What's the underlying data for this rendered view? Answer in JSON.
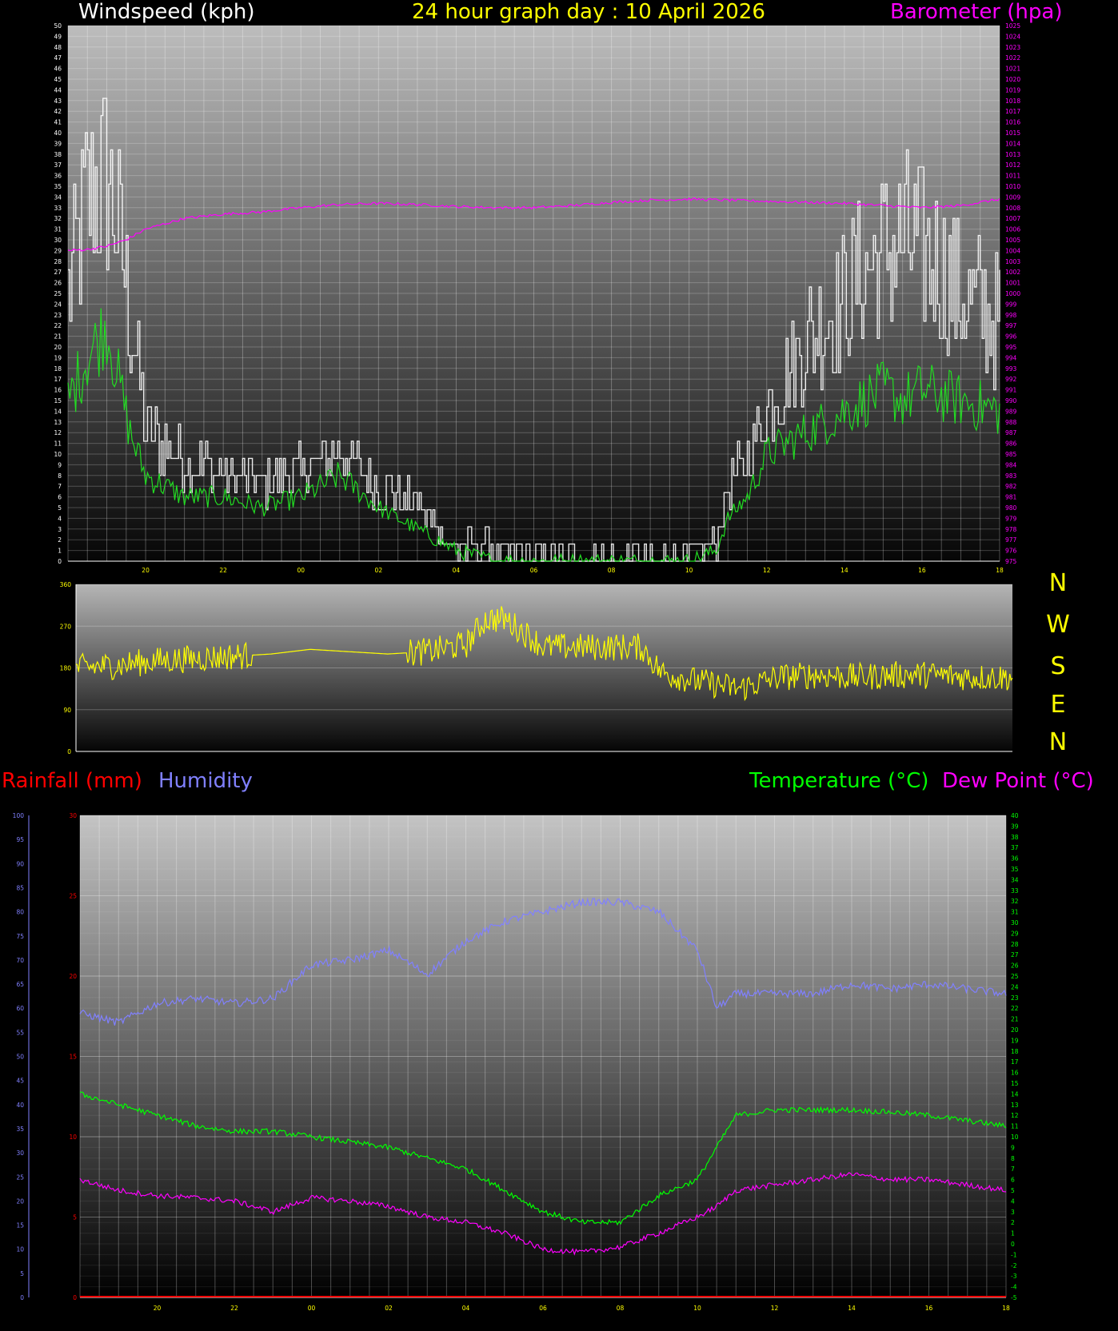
{
  "titles": {
    "windspeed": "Windspeed (kph)",
    "main": "24 hour graph day : 10 April 2026",
    "barometer": "Barometer (hpa)",
    "rainfall": "Rainfall (mm)",
    "humidity": "Humidity",
    "temperature": "Temperature (°C)",
    "dewpoint": "Dew Point (°C)"
  },
  "compass": [
    "N",
    "W",
    "S",
    "E",
    "N"
  ],
  "colors": {
    "windspeed": "#ffffff",
    "wind_avg": "#22dd22",
    "barometer": "#ff00ff",
    "direction": "#ffff00",
    "rainfall": "#ff0000",
    "humidity": "#8080ff",
    "temperature": "#00ff00",
    "dewpoint": "#ff00ff",
    "title": "#ffff00"
  },
  "chart_data": [
    {
      "type": "line",
      "title": "24 hour graph day : 10 April 2026",
      "ylabel": "Windspeed (kph)",
      "y2label": "Barometer (hpa)",
      "ylim": [
        0,
        50
      ],
      "y2lim": [
        975,
        1025
      ],
      "x_hours": [
        18,
        42
      ],
      "xticks": [
        "20",
        "22",
        "00",
        "02",
        "04",
        "06",
        "08",
        "10",
        "12",
        "14",
        "16",
        "18",
        "20",
        "22",
        "00"
      ],
      "grid": true,
      "series": [
        {
          "name": "Windspeed (kph)",
          "axis": "left",
          "style": "gust",
          "x": [
            18.0,
            18.5,
            19.0,
            19.3,
            19.6,
            20.0,
            21.0,
            22.0,
            23.0,
            0.0,
            1.0,
            2.0,
            3.0,
            4.0,
            5.0,
            6.0,
            7.0,
            8.0,
            9.0,
            10.0,
            10.7,
            11.0,
            11.5,
            12.0,
            13.0,
            14.0,
            15.0,
            15.5,
            16.0,
            17.0,
            18.0,
            18.8,
            19.3,
            19.7,
            20.0,
            21.0,
            22.0,
            23.0,
            0.0
          ],
          "y": [
            24,
            33,
            35,
            30,
            22,
            12,
            9,
            8,
            7,
            8,
            10,
            7,
            5,
            1,
            1,
            0,
            0,
            0,
            0,
            0,
            2,
            7,
            9,
            14,
            20,
            24,
            28,
            29,
            28,
            24,
            22,
            18,
            7,
            5,
            6,
            7,
            6,
            6,
            2
          ]
        },
        {
          "name": "Average windspeed",
          "axis": "left",
          "style": "avg",
          "x": [
            18.0,
            18.5,
            19.0,
            19.3,
            19.6,
            20.0,
            21.0,
            22.0,
            23.0,
            0.0,
            1.0,
            2.0,
            3.0,
            4.0,
            5.0,
            6.0,
            7.0,
            8.0,
            9.0,
            10.0,
            10.7,
            11.0,
            11.5,
            12.0,
            13.0,
            14.0,
            15.0,
            15.5,
            16.0,
            17.0,
            18.0,
            18.8,
            19.3,
            19.7,
            20.0,
            21.0,
            22.0,
            23.0,
            0.0
          ],
          "y": [
            15,
            19,
            22,
            17,
            12,
            8,
            6,
            6,
            5,
            6,
            8,
            5,
            3,
            1,
            0,
            0,
            0,
            0,
            0,
            0,
            1,
            4,
            6,
            10,
            12,
            14,
            16,
            15,
            16,
            15,
            14,
            12,
            5,
            3,
            4,
            5,
            4,
            4,
            1
          ]
        },
        {
          "name": "Barometer (hpa)",
          "axis": "right",
          "style": "baro",
          "x": [
            18.0,
            18.5,
            19.0,
            19.5,
            20.0,
            21.0,
            22.0,
            23.0,
            0.0,
            1.0,
            2.0,
            3.0,
            4.0,
            5.0,
            6.0,
            7.0,
            8.0,
            9.0,
            10.0,
            11.0,
            12.0,
            13.0,
            14.0,
            15.0,
            16.0,
            17.0,
            18.0,
            18.8,
            19.3,
            20.0,
            21.0,
            22.0,
            23.0,
            0.0
          ],
          "y": [
            1004,
            1004.1,
            1004.4,
            1005,
            1006,
            1007,
            1007.4,
            1007.6,
            1008,
            1008.3,
            1008.4,
            1008.3,
            1008.1,
            1008,
            1008,
            1008.2,
            1008.5,
            1008.7,
            1008.8,
            1008.7,
            1008.6,
            1008.5,
            1008.4,
            1008.2,
            1008,
            1008.2,
            1008.8,
            1009.4,
            1009.6,
            1010,
            1010.5,
            1011,
            1011.3,
            1011
          ]
        }
      ]
    },
    {
      "type": "line",
      "title": "",
      "ylabel": "",
      "ylim": [
        0,
        360
      ],
      "yticks": [
        0,
        90,
        180,
        270,
        360
      ],
      "x_hours": [
        18,
        42
      ],
      "grid": true,
      "series": [
        {
          "name": "Wind direction",
          "axis": "left",
          "style": "dir",
          "x": [
            18.0,
            19.0,
            20.0,
            21.0,
            22.0,
            23.0,
            0.0,
            1.0,
            2.0,
            3.0,
            4.0,
            4.5,
            5.0,
            6.0,
            7.0,
            8.0,
            8.5,
            9.0,
            10.0,
            11.0,
            12.0,
            13.0,
            14.0,
            15.0,
            16.0,
            17.0,
            18.0,
            19.0,
            19.7,
            20.0,
            21.0,
            22.0,
            23.0,
            0.0
          ],
          "y": [
            180,
            185,
            195,
            200,
            205,
            210,
            220,
            215,
            210,
            215,
            230,
            285,
            285,
            225,
            225,
            225,
            225,
            170,
            150,
            135,
            160,
            165,
            160,
            165,
            165,
            160,
            160,
            165,
            170,
            230,
            240,
            240,
            225,
            225
          ]
        }
      ]
    },
    {
      "type": "line",
      "title": "",
      "ylabel": "Rainfall (mm)",
      "y2label": "Temperature (°C)",
      "ylim": [
        0,
        30
      ],
      "y2lim": [
        -5,
        40
      ],
      "humidity_lim": [
        0,
        100
      ],
      "x_hours": [
        18,
        42
      ],
      "grid": true,
      "series": [
        {
          "name": "Humidity",
          "axis": "humidity",
          "style": "hum",
          "x": [
            18.0,
            19.0,
            20.0,
            21.0,
            22.0,
            23.0,
            0.0,
            1.0,
            2.0,
            3.0,
            4.0,
            5.0,
            6.0,
            7.0,
            8.0,
            9.0,
            10.0,
            10.5,
            11.0,
            12.0,
            13.0,
            14.0,
            15.0,
            16.0,
            17.0,
            18.0,
            19.0,
            20.0,
            21.0,
            22.0,
            23.0,
            0.0
          ],
          "y": [
            59,
            57,
            61,
            62,
            61,
            62,
            69,
            70,
            72,
            67,
            74,
            78,
            80,
            82,
            82,
            80,
            72,
            60,
            63,
            63,
            63,
            65,
            64,
            65,
            64,
            63,
            64,
            63,
            62,
            60,
            64,
            67
          ]
        },
        {
          "name": "Temperature (°C)",
          "axis": "right",
          "style": "temp",
          "x": [
            18.0,
            19.0,
            20.0,
            21.0,
            22.0,
            23.0,
            0.0,
            1.0,
            2.0,
            3.0,
            4.0,
            5.0,
            6.0,
            7.0,
            8.0,
            9.0,
            10.0,
            10.5,
            11.0,
            12.0,
            13.0,
            14.0,
            15.0,
            16.0,
            17.0,
            18.0,
            19.0,
            20.0,
            21.0,
            22.0,
            23.0,
            0.0
          ],
          "y": [
            14,
            13,
            12,
            11,
            10.5,
            10.5,
            10,
            9.5,
            9,
            8,
            7,
            5,
            3,
            2,
            2,
            4.5,
            6,
            9,
            12,
            12.5,
            12.5,
            12.5,
            12.3,
            12,
            11.5,
            11,
            10.8,
            10.5,
            10.3,
            10,
            10.2,
            9.8
          ]
        },
        {
          "name": "Dew Point (°C)",
          "axis": "right",
          "style": "dew",
          "x": [
            18.0,
            19.0,
            20.0,
            21.0,
            22.0,
            23.0,
            0.0,
            1.0,
            2.0,
            3.0,
            4.0,
            5.0,
            6.0,
            7.0,
            8.0,
            9.0,
            10.0,
            10.5,
            11.0,
            12.0,
            13.0,
            14.0,
            15.0,
            16.0,
            17.0,
            18.0,
            19.0,
            20.0,
            21.0,
            22.0,
            23.0,
            0.0
          ],
          "y": [
            6,
            5,
            4.5,
            4.3,
            4,
            3,
            4.3,
            4,
            3.5,
            2.5,
            2,
            1,
            -0.5,
            -0.8,
            -0.3,
            1,
            2.5,
            3.5,
            5,
            5.5,
            6,
            6.5,
            6,
            6,
            5.5,
            5,
            4.5,
            4.2,
            4,
            3.5,
            3.8,
            4
          ]
        },
        {
          "name": "Rainfall (mm)",
          "axis": "left",
          "style": "rain",
          "x": [
            18.0,
            0.0,
            6.0,
            12.0,
            18.0,
            0.0
          ],
          "y": [
            0,
            0,
            0,
            0,
            0,
            0
          ]
        }
      ]
    }
  ]
}
